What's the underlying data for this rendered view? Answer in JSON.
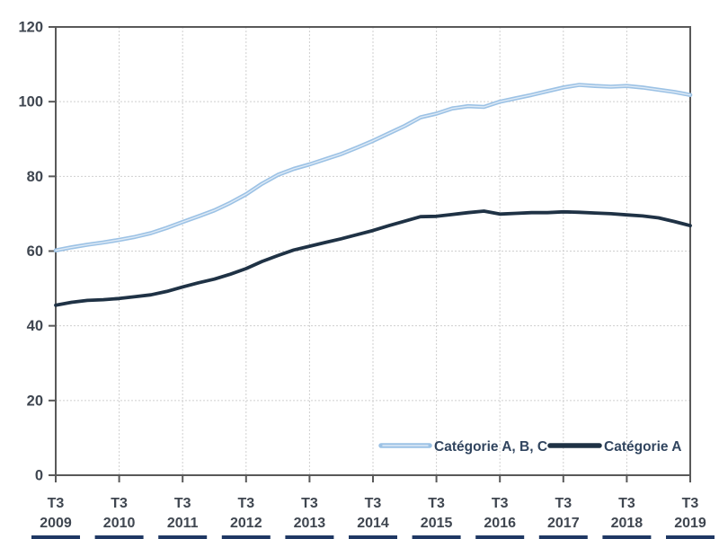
{
  "chart_data": {
    "type": "line",
    "title": "",
    "xlabel": "",
    "ylabel": "",
    "x_step": "quarter",
    "x_start": "T3 2009",
    "x_end": "T3 2019",
    "x_axis": {
      "tick_quarter_label": "T3",
      "tick_years": [
        "2009",
        "2010",
        "2011",
        "2012",
        "2013",
        "2014",
        "2015",
        "2016",
        "2017",
        "2018",
        "2019"
      ],
      "quarters_per_year": 4
    },
    "y_axis": {
      "ticks": [
        0,
        20,
        40,
        60,
        80,
        100,
        120
      ],
      "range": [
        0,
        120
      ]
    },
    "grid": true,
    "legend_position": "inside-bottom-right",
    "series": [
      {
        "name": "Catégorie A, B, C",
        "color": "#9CC2E5",
        "highlight": "#DEEAF6",
        "values": [
          60.2,
          61.0,
          61.7,
          62.3,
          63.0,
          63.8,
          64.8,
          66.2,
          67.8,
          69.3,
          70.9,
          72.9,
          75.2,
          78.0,
          80.4,
          82.0,
          83.2,
          84.6,
          86.0,
          87.7,
          89.5,
          91.5,
          93.5,
          95.8,
          96.8,
          98.2,
          98.8,
          98.6,
          100.0,
          100.9,
          101.8,
          102.8,
          103.8,
          104.5,
          104.2,
          104.0,
          104.2,
          103.8,
          103.2,
          102.6,
          101.8
        ]
      },
      {
        "name": "Catégorie A",
        "color": "#1F3245",
        "highlight": null,
        "values": [
          45.5,
          46.3,
          46.8,
          47.0,
          47.3,
          47.8,
          48.3,
          49.2,
          50.4,
          51.5,
          52.5,
          53.8,
          55.3,
          57.2,
          58.8,
          60.3,
          61.3,
          62.3,
          63.3,
          64.4,
          65.5,
          66.8,
          68.0,
          69.2,
          69.3,
          69.8,
          70.3,
          70.7,
          69.9,
          70.1,
          70.3,
          70.3,
          70.5,
          70.4,
          70.2,
          70.0,
          69.7,
          69.4,
          68.9,
          67.9,
          66.8
        ]
      }
    ]
  },
  "legend": {
    "items": [
      {
        "label": "Catégorie A, B, C",
        "color": "#9CC2E5",
        "highlight": "#DEEAF6"
      },
      {
        "label": "Catégorie A",
        "color": "#1F3245",
        "highlight": null
      }
    ],
    "text_color": "#31455F"
  },
  "style": {
    "plot_border_color": "#595959",
    "gridline_color": "#CFCFCF",
    "tick_color": "#595959",
    "axis_label_color": "#3F4650",
    "bottom_strip_color": "#1F3864",
    "background": "#FFFFFF"
  }
}
